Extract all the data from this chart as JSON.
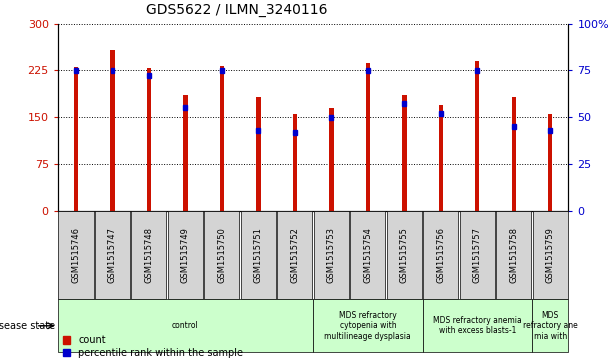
{
  "title": "GDS5622 / ILMN_3240116",
  "samples": [
    "GSM1515746",
    "GSM1515747",
    "GSM1515748",
    "GSM1515749",
    "GSM1515750",
    "GSM1515751",
    "GSM1515752",
    "GSM1515753",
    "GSM1515754",
    "GSM1515755",
    "GSM1515756",
    "GSM1515757",
    "GSM1515758",
    "GSM1515759"
  ],
  "counts": [
    230,
    258,
    228,
    185,
    232,
    183,
    155,
    165,
    237,
    185,
    170,
    240,
    183,
    155
  ],
  "percentiles": [
    75,
    75,
    72,
    55,
    75,
    43,
    42,
    50,
    75,
    57,
    52,
    75,
    45,
    43
  ],
  "ylim_left": [
    0,
    300
  ],
  "ylim_right": [
    0,
    100
  ],
  "yticks_left": [
    0,
    75,
    150,
    225,
    300
  ],
  "yticks_right": [
    0,
    25,
    50,
    75,
    100
  ],
  "bar_color": "#cc1100",
  "percentile_color": "#0000cc",
  "bg_color": "#ffffff",
  "disease_groups": [
    {
      "label": "control",
      "start": 0,
      "end": 7,
      "color": "#ccffcc"
    },
    {
      "label": "MDS refractory\ncytopenia with\nmultilineage dysplasia",
      "start": 7,
      "end": 10,
      "color": "#ccffcc"
    },
    {
      "label": "MDS refractory anemia\nwith excess blasts-1",
      "start": 10,
      "end": 13,
      "color": "#ccffcc"
    },
    {
      "label": "MDS\nrefractory ane\nmia with",
      "start": 13,
      "end": 14,
      "color": "#ccffcc"
    }
  ],
  "disease_label": "disease state",
  "bar_width": 0.12,
  "tick_label_fontsize": 6.0,
  "title_fontsize": 10,
  "sample_box_color": "#d4d4d4",
  "legend_count_label": "count",
  "legend_pct_label": "percentile rank within the sample"
}
